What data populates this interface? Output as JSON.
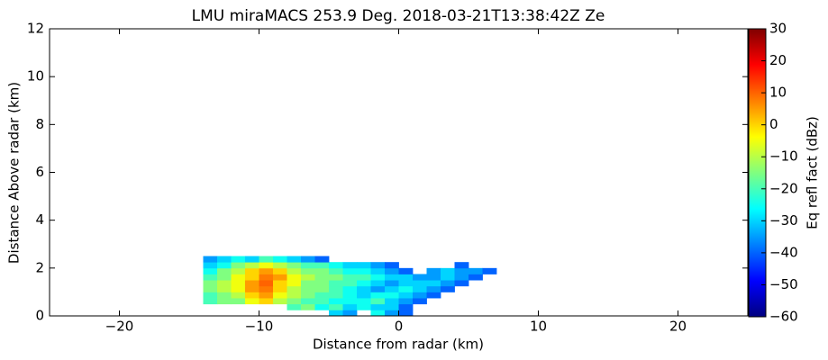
{
  "chart_data": {
    "type": "heatmap",
    "title": "LMU miraMACS 253.9 Deg. 2018-03-21T13:38:42Z  Ze",
    "x_label": "Distance from radar (km)",
    "y_label": "Distance Above radar  (km)",
    "colorbar_label": "Eq refl fact (dBz)",
    "colormap": "jet",
    "xlim": [
      -25,
      25
    ],
    "ylim": [
      0,
      12
    ],
    "xticks": [
      {
        "value": -20,
        "label": "−20"
      },
      {
        "value": -10,
        "label": "−10"
      },
      0,
      10,
      20
    ],
    "yticks": [
      0,
      2,
      4,
      6,
      8,
      10,
      12
    ],
    "clim": [
      -60,
      30
    ],
    "cticks": [
      {
        "value": -60,
        "label": "−60"
      },
      {
        "value": -50,
        "label": "−50"
      },
      {
        "value": -40,
        "label": "−40"
      },
      {
        "value": -30,
        "label": "−30"
      },
      {
        "value": -20,
        "label": "−20"
      },
      {
        "value": -10,
        "label": "−10"
      },
      0,
      10,
      20,
      30
    ],
    "x": [
      -13.5,
      -12.5,
      -11.5,
      -10.5,
      -9.5,
      -8.5,
      -7.5,
      -6.5,
      -5.5,
      -4.5,
      -3.5,
      -2.5,
      -1.5,
      -0.5,
      0.5,
      1.5,
      2.5,
      3.5,
      4.5,
      5.5,
      6.5
    ],
    "y": [
      0.125,
      0.375,
      0.625,
      0.875,
      1.125,
      1.375,
      1.625,
      1.875,
      2.125,
      2.375
    ],
    "values": [
      [
        null,
        null,
        null,
        null,
        null,
        null,
        null,
        null,
        null,
        -30,
        -35,
        null,
        -25,
        -35,
        -40,
        null,
        null,
        null,
        null,
        null,
        null
      ],
      [
        null,
        null,
        null,
        null,
        null,
        null,
        -20,
        -15,
        -25,
        -20,
        -30,
        -25,
        -30,
        -30,
        -40,
        null,
        null,
        null,
        null,
        null,
        null
      ],
      [
        -20,
        -15,
        -15,
        -5,
        0,
        -10,
        -15,
        -20,
        -20,
        -25,
        -25,
        -25,
        -20,
        -30,
        -35,
        -40,
        null,
        null,
        null,
        null,
        null
      ],
      [
        -20,
        -15,
        -10,
        0,
        5,
        -5,
        -10,
        -15,
        -20,
        -20,
        -25,
        -30,
        -25,
        -25,
        -30,
        -35,
        -40,
        null,
        null,
        null,
        null
      ],
      [
        -15,
        -10,
        -5,
        5,
        8,
        0,
        -10,
        -15,
        -15,
        -20,
        -25,
        -30,
        -35,
        -30,
        -25,
        -30,
        -35,
        -40,
        null,
        null,
        null
      ],
      [
        -15,
        -10,
        -5,
        5,
        10,
        0,
        -5,
        -15,
        -15,
        -20,
        -20,
        -25,
        -30,
        -35,
        -30,
        -30,
        -30,
        -35,
        -40,
        null,
        null
      ],
      [
        -20,
        -15,
        -5,
        0,
        8,
        5,
        -5,
        -10,
        -15,
        -15,
        -20,
        -20,
        -25,
        -30,
        -30,
        -35,
        -35,
        -30,
        -35,
        -40,
        null
      ],
      [
        -25,
        -15,
        -10,
        0,
        5,
        0,
        -10,
        -15,
        -15,
        -20,
        -25,
        -25,
        -30,
        -35,
        -40,
        null,
        -35,
        -30,
        -35,
        -35,
        -40
      ],
      [
        -30,
        -25,
        -15,
        -10,
        -5,
        -10,
        -15,
        -20,
        -20,
        -25,
        -30,
        -30,
        -35,
        -40,
        null,
        null,
        null,
        null,
        -40,
        null,
        null
      ],
      [
        -35,
        -30,
        -25,
        -30,
        -20,
        -25,
        -30,
        -35,
        -40,
        null,
        null,
        null,
        null,
        null,
        null,
        null,
        null,
        null,
        null,
        null,
        null
      ]
    ]
  }
}
